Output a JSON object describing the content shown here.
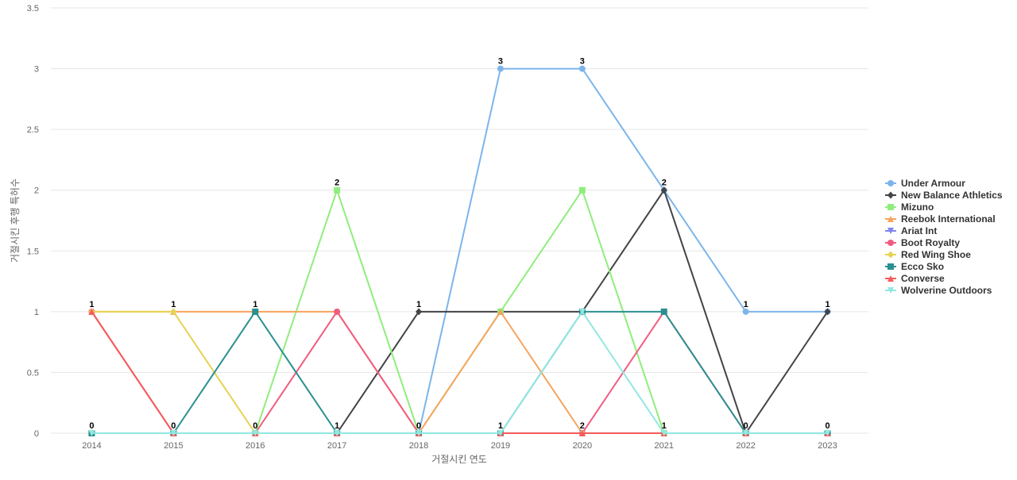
{
  "chart_data": {
    "type": "line",
    "title": "",
    "xlabel": "거절시킨 연도",
    "ylabel": "거절시킨 후행 특허수",
    "categories": [
      "2014",
      "2015",
      "2016",
      "2017",
      "2018",
      "2019",
      "2020",
      "2021",
      "2022",
      "2023"
    ],
    "y_ticks": [
      "0",
      "0.5",
      "1",
      "1.5",
      "2",
      "2.5",
      "3",
      "3.5"
    ],
    "ylim": [
      0,
      3.5
    ],
    "grid": true,
    "legend_position": "right",
    "series": [
      {
        "name": "Under Armour",
        "color": "#7cb5ec",
        "marker": "circle",
        "values": [
          0,
          0,
          0,
          0,
          0,
          3,
          3,
          2,
          1,
          1
        ]
      },
      {
        "name": "New Balance Athletics",
        "color": "#434348",
        "marker": "diamond",
        "values": [
          0,
          0,
          0,
          0,
          1,
          1,
          1,
          2,
          0,
          1
        ]
      },
      {
        "name": "Mizuno",
        "color": "#90ed7d",
        "marker": "square",
        "values": [
          0,
          0,
          0,
          2,
          0,
          1,
          2,
          0,
          0,
          0
        ]
      },
      {
        "name": "Reebok International",
        "color": "#f7a35c",
        "marker": "triangle",
        "values": [
          1,
          1,
          1,
          1,
          0,
          1,
          0,
          0,
          0,
          0
        ]
      },
      {
        "name": "Ariat Int",
        "color": "#8085e9",
        "marker": "triangle-down",
        "values": [
          0,
          0,
          0,
          0,
          0,
          0,
          0,
          0,
          0,
          0
        ]
      },
      {
        "name": "Boot Royalty",
        "color": "#f15c80",
        "marker": "circle",
        "values": [
          1,
          0,
          0,
          1,
          0,
          0,
          0,
          1,
          0,
          0
        ]
      },
      {
        "name": "Red Wing Shoe",
        "color": "#e4d354",
        "marker": "diamond",
        "values": [
          1,
          1,
          0,
          0,
          0,
          0,
          0,
          0,
          0,
          0
        ]
      },
      {
        "name": "Ecco Sko",
        "color": "#2b908f",
        "marker": "square",
        "values": [
          0,
          0,
          1,
          0,
          0,
          0,
          1,
          1,
          0,
          0
        ]
      },
      {
        "name": "Converse",
        "color": "#f45b5b",
        "marker": "triangle",
        "values": [
          1,
          0,
          0,
          0,
          0,
          0,
          0,
          0,
          0,
          0
        ]
      },
      {
        "name": "Wolverine Outdoors",
        "color": "#91e8e1",
        "marker": "triangle-down",
        "values": [
          0,
          0,
          0,
          0,
          0,
          0,
          1,
          0,
          0,
          0
        ]
      }
    ],
    "data_labels": [
      "1",
      "1",
      "1",
      "2",
      "1",
      "3",
      "3",
      "2",
      "1",
      "1",
      "0",
      "0",
      "0",
      "1",
      "0",
      "1",
      "2",
      "1",
      "0",
      "0",
      "0",
      "0",
      "0",
      "0",
      "0",
      "0",
      "0",
      "0",
      "0",
      "0",
      "0",
      "0",
      "0",
      "0",
      "0",
      "0",
      "0",
      "0",
      "0",
      "0"
    ]
  }
}
